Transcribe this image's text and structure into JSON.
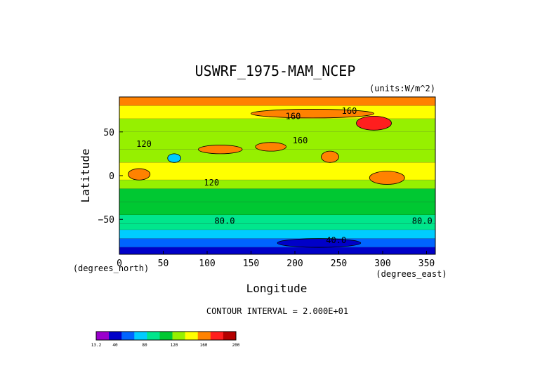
{
  "chart_data": {
    "type": "heatmap",
    "title": "USWRF_1975-MAM_NCEP",
    "units": "(units:W/m^2)",
    "xlabel": "Longitude",
    "ylabel": "Latitude",
    "x_units_note": "(degrees_east)",
    "y_units_note": "(degrees_north)",
    "xlim": [
      0,
      360
    ],
    "ylim": [
      -90,
      90
    ],
    "x_ticks": [
      0,
      50,
      100,
      150,
      200,
      250,
      300,
      350
    ],
    "x_tick_labels": [
      "0",
      "50",
      "100",
      "150",
      "200",
      "250",
      "300",
      "350"
    ],
    "y_ticks": [
      50,
      0,
      -50
    ],
    "y_tick_labels": [
      "50",
      "0",
      "−50"
    ],
    "contour_interval_text": "CONTOUR INTERVAL = 2.000E+01",
    "contour_labels": [
      {
        "text": "160",
        "lon": 198,
        "lat": 68
      },
      {
        "text": "160",
        "lon": 262,
        "lat": 74
      },
      {
        "text": "160",
        "lon": 206,
        "lat": 40
      },
      {
        "text": "120",
        "lon": 28,
        "lat": 36
      },
      {
        "text": "120",
        "lon": 105,
        "lat": -8
      },
      {
        "text": "80.0",
        "lon": 120,
        "lat": -52
      },
      {
        "text": "80.0",
        "lon": 345,
        "lat": -52
      },
      {
        "text": "40.0",
        "lon": 247,
        "lat": -74
      }
    ],
    "latitude_bands": [
      {
        "lat": [
          80,
          90
        ],
        "value": 170
      },
      {
        "lat": [
          65,
          80
        ],
        "value": 150
      },
      {
        "lat": [
          50,
          65
        ],
        "value": 135
      },
      {
        "lat": [
          30,
          50
        ],
        "value": 125
      },
      {
        "lat": [
          15,
          30
        ],
        "value": 130
      },
      {
        "lat": [
          -5,
          15
        ],
        "value": 140
      },
      {
        "lat": [
          -15,
          -5
        ],
        "value": 125
      },
      {
        "lat": [
          -30,
          -15
        ],
        "value": 118
      },
      {
        "lat": [
          -45,
          -30
        ],
        "value": 105
      },
      {
        "lat": [
          -55,
          -45
        ],
        "value": 90
      },
      {
        "lat": [
          -62,
          -55
        ],
        "value": 80
      },
      {
        "lat": [
          -72,
          -62
        ],
        "value": 62
      },
      {
        "lat": [
          -82,
          -72
        ],
        "value": 45
      },
      {
        "lat": [
          -90,
          -82
        ],
        "value": 20
      }
    ],
    "features": [
      {
        "lon": [
          150,
          290
        ],
        "lat": [
          66,
          76
        ],
        "value": 170
      },
      {
        "lon": [
          270,
          310
        ],
        "lat": [
          52,
          68
        ],
        "value": 185
      },
      {
        "lon": [
          90,
          140
        ],
        "lat": [
          25,
          35
        ],
        "value": 175
      },
      {
        "lon": [
          155,
          190
        ],
        "lat": [
          28,
          38
        ],
        "value": 170
      },
      {
        "lon": [
          10,
          35
        ],
        "lat": [
          -5,
          8
        ],
        "value": 170
      },
      {
        "lon": [
          285,
          325
        ],
        "lat": [
          -10,
          5
        ],
        "value": 175
      },
      {
        "lon": [
          230,
          250
        ],
        "lat": [
          15,
          28
        ],
        "value": 170
      },
      {
        "lon": [
          55,
          70
        ],
        "lat": [
          15,
          25
        ],
        "value": 75
      },
      {
        "lon": [
          180,
          275
        ],
        "lat": [
          -82,
          -72
        ],
        "value": 30
      }
    ],
    "colorbar": {
      "ticks": [
        "13.2",
        "40",
        "80",
        "120",
        "160",
        "200"
      ],
      "levels": [
        13.2,
        20,
        40,
        60,
        80,
        100,
        120,
        140,
        160,
        180,
        200,
        205
      ],
      "colors": [
        "#9a00cc",
        "#0000c8",
        "#0064ff",
        "#00ccff",
        "#00e68c",
        "#00c832",
        "#96f000",
        "#ffff00",
        "#ff8200",
        "#ff1e1e",
        "#b40000"
      ]
    }
  }
}
